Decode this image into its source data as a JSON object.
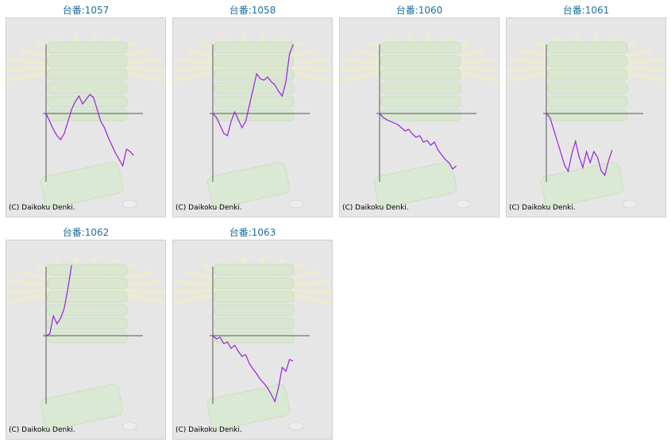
{
  "cards": [
    {
      "title": "台番:1057",
      "values": [
        0,
        -10,
        -20,
        -28,
        -33,
        -25,
        -10,
        5,
        15,
        22,
        12,
        18,
        24,
        20,
        5,
        -10,
        -18,
        -30,
        -40,
        -50,
        -58,
        -66,
        -45,
        -48,
        -53
      ]
    },
    {
      "title": "台番:1058",
      "values": [
        0,
        -5,
        -15,
        -25,
        -28,
        -10,
        2,
        -8,
        -18,
        -10,
        10,
        30,
        50,
        44,
        42,
        46,
        40,
        36,
        28,
        22,
        40,
        75,
        87
      ]
    },
    {
      "title": "台番:1060",
      "values": [
        0,
        -5,
        -8,
        -10,
        -12,
        -14,
        -18,
        -22,
        -20,
        -26,
        -30,
        -28,
        -36,
        -34,
        -40,
        -36,
        -46,
        -52,
        -58,
        -62,
        -70,
        -66
      ]
    },
    {
      "title": "台番:1061",
      "values": [
        0,
        -5,
        -20,
        -35,
        -50,
        -65,
        -73,
        -50,
        -35,
        -55,
        -68,
        -48,
        -62,
        -48,
        -55,
        -72,
        -78,
        -60,
        -46
      ]
    },
    {
      "title": "台番:1062",
      "values": [
        0,
        2,
        25,
        15,
        22,
        35,
        60,
        89
      ]
    },
    {
      "title": "台番:1063",
      "values": [
        0,
        -4,
        -2,
        -10,
        -8,
        -16,
        -12,
        -20,
        -26,
        -24,
        -35,
        -42,
        -48,
        -55,
        -60,
        -66,
        -74,
        -83,
        -65,
        -40,
        -45,
        -30,
        -32
      ]
    }
  ],
  "copyright": "(C) Daikoku Denki."
}
